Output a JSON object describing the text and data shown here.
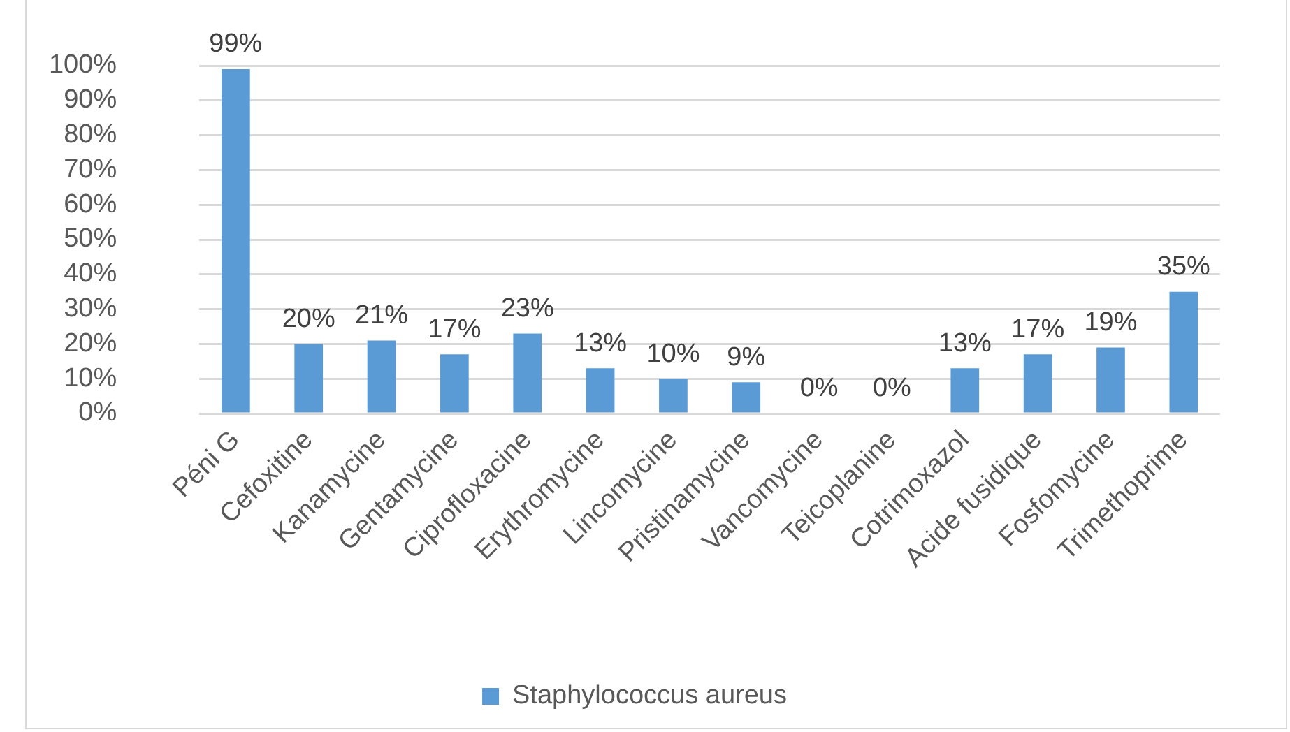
{
  "chart_data": {
    "type": "bar",
    "categories": [
      "Péni G",
      "Cefoxitine",
      "Kanamycine",
      "Gentamycine",
      "Ciprofloxacine",
      "Erythromycine",
      "Lincomycine",
      "Pristinamycine",
      "Vancomycine",
      "Teicoplanine",
      "Cotrimoxazol",
      "Acide fusidique",
      "Fosfomycine",
      "Trimethoprime"
    ],
    "series": [
      {
        "name": "Staphylococcus aureus",
        "color": "#5b9bd5",
        "values": [
          99,
          20,
          21,
          17,
          23,
          13,
          10,
          9,
          0,
          0,
          13,
          17,
          19,
          35
        ],
        "value_labels": [
          "99%",
          "20%",
          "21%",
          "17%",
          "23%",
          "13%",
          "10%",
          "9%",
          "0%",
          "0%",
          "13%",
          "17%",
          "19%",
          "35%"
        ]
      }
    ],
    "ylim": [
      0,
      100
    ],
    "yticks": [
      {
        "value": 0,
        "label": "0%"
      },
      {
        "value": 10,
        "label": "10%"
      },
      {
        "value": 20,
        "label": "20%"
      },
      {
        "value": 30,
        "label": "30%"
      },
      {
        "value": 40,
        "label": "40%"
      },
      {
        "value": 50,
        "label": "50%"
      },
      {
        "value": 60,
        "label": "60%"
      },
      {
        "value": 70,
        "label": "70%"
      },
      {
        "value": 80,
        "label": "80%"
      },
      {
        "value": 90,
        "label": "90%"
      },
      {
        "value": 100,
        "label": "100%"
      }
    ],
    "grid": "y",
    "legend": "bottom"
  }
}
